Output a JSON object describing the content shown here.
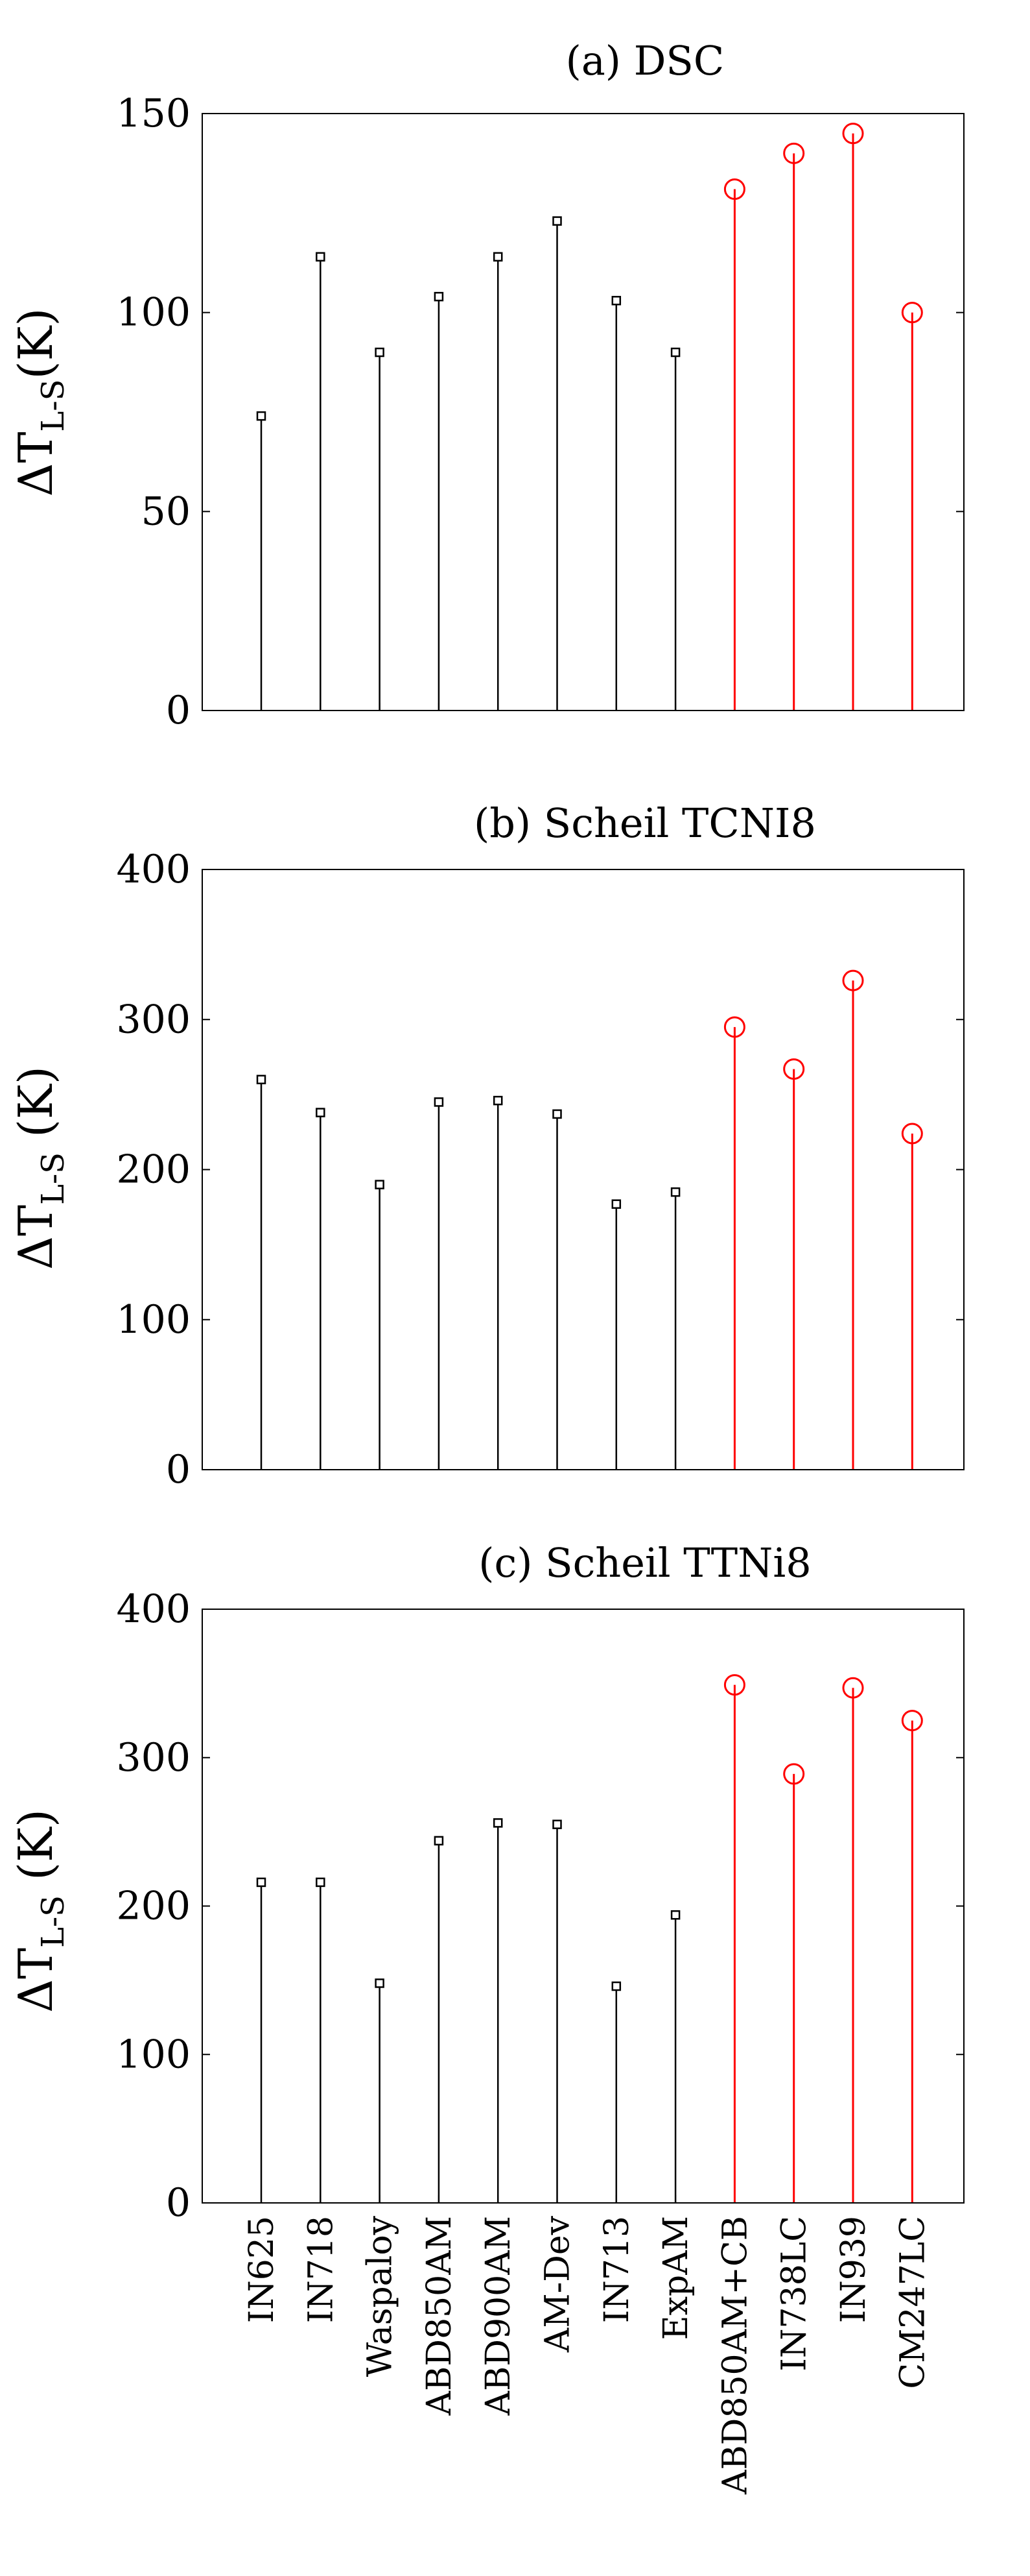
{
  "colors": {
    "conventional": "#000000",
    "crack_prone": "#ff0000",
    "axes": "#000000"
  },
  "categories": [
    "IN625",
    "IN718",
    "Waspaloy",
    "ABD850AM",
    "ABD900AM",
    "AM-Dev",
    "IN713",
    "ExpAM",
    "ABD850AM+CB",
    "IN738LC",
    "IN939",
    "CM247LC"
  ],
  "chart_data": [
    {
      "type": "stem",
      "title": "(a) DSC",
      "ylabel": {
        "main": "ΔT",
        "sub": "L-S",
        "unit": "(K)"
      },
      "ylim": [
        0,
        150
      ],
      "yticks": [
        0,
        50,
        100,
        150
      ],
      "categories": [
        "IN625",
        "IN718",
        "Waspaloy",
        "ABD850AM",
        "ABD900AM",
        "AM-Dev",
        "IN713",
        "ExpAM",
        "ABD850AM+CB",
        "IN738LC",
        "IN939",
        "CM247LC"
      ],
      "values": [
        74,
        114,
        90,
        104,
        114,
        123,
        103,
        90,
        131,
        140,
        145,
        100
      ],
      "marker_groups": [
        "square",
        "square",
        "square",
        "square",
        "square",
        "square",
        "square",
        "square",
        "circle",
        "circle",
        "circle",
        "circle"
      ],
      "show_xticklabels": false
    },
    {
      "type": "stem",
      "title": "(b) Scheil TCNI8",
      "ylabel": {
        "main": "ΔT",
        "sub": "L-S",
        "unit": " (K)"
      },
      "ylim": [
        0,
        400
      ],
      "yticks": [
        0,
        100,
        200,
        300,
        400
      ],
      "categories": [
        "IN625",
        "IN718",
        "Waspaloy",
        "ABD850AM",
        "ABD900AM",
        "AM-Dev",
        "IN713",
        "ExpAM",
        "ABD850AM+CB",
        "IN738LC",
        "IN939",
        "CM247LC"
      ],
      "values": [
        260,
        238,
        190,
        245,
        246,
        237,
        177,
        185,
        295,
        267,
        326,
        224
      ],
      "marker_groups": [
        "square",
        "square",
        "square",
        "square",
        "square",
        "square",
        "square",
        "square",
        "circle",
        "circle",
        "circle",
        "circle"
      ],
      "show_xticklabels": false
    },
    {
      "type": "stem",
      "title": "(c) Scheil TTNi8",
      "ylabel": {
        "main": "ΔT",
        "sub": "L-S",
        "unit": " (K)"
      },
      "ylim": [
        0,
        400
      ],
      "yticks": [
        0,
        100,
        200,
        300,
        400
      ],
      "categories": [
        "IN625",
        "IN718",
        "Waspaloy",
        "ABD850AM",
        "ABD900AM",
        "AM-Dev",
        "IN713",
        "ExpAM",
        "ABD850AM+CB",
        "IN738LC",
        "IN939",
        "CM247LC"
      ],
      "values": [
        216,
        216,
        148,
        244,
        256,
        255,
        146,
        194,
        349,
        289,
        347,
        325
      ],
      "marker_groups": [
        "square",
        "square",
        "square",
        "square",
        "square",
        "square",
        "square",
        "square",
        "circle",
        "circle",
        "circle",
        "circle"
      ],
      "show_xticklabels": true
    }
  ]
}
